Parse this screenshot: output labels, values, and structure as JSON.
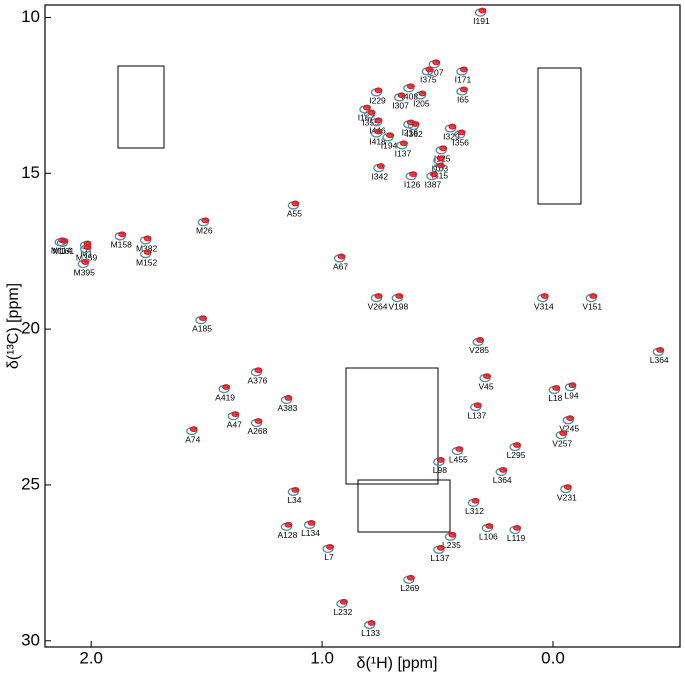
{
  "chart_data": {
    "type": "scatter",
    "x_label": "δ(¹H) [ppm]",
    "y_label": "δ(¹³C) [ppm]",
    "xlim": [
      2.2,
      -0.55
    ],
    "ylim": [
      30.2,
      9.6
    ],
    "xticks": [
      {
        "value": 2.0,
        "label": "2.0"
      },
      {
        "value": 1.0,
        "label": "1.0"
      },
      {
        "value": 0.0,
        "label": "0.0"
      }
    ],
    "yticks": [
      10,
      15,
      20,
      25,
      30
    ],
    "colors": [
      "#d7191c",
      "#4f8fa8"
    ],
    "points": {
      "labels": [
        "I191",
        "M26",
        "M114",
        "M1",
        "M161",
        "M359",
        "M395",
        "M158",
        "M382",
        "M152",
        "A55",
        "A67",
        "L364",
        "V151",
        "V314",
        "L18",
        "L94",
        "V245",
        "V257",
        "L295",
        "L364",
        "V231",
        "L119",
        "L106",
        "A74",
        "A47",
        "A419",
        "A376",
        "A268",
        "A383",
        "A128",
        "A185",
        "L232",
        "L133",
        "L269",
        "I229",
        "I207",
        "I171",
        "I375",
        "I65",
        "I408",
        "I205",
        "I307",
        "I167",
        "I355",
        "I446",
        "I418",
        "I194",
        "I216",
        "I362",
        "I329",
        "I356",
        "I125",
        "I103",
        "I415",
        "I137",
        "I342",
        "I126",
        "I387",
        "V264",
        "V198",
        "V285",
        "V45",
        "L137",
        "L455",
        "L98",
        "L312",
        "L235",
        "L137",
        "L7",
        "L134",
        "L34"
      ],
      "x": [
        0.31,
        1.51,
        2.13,
        2.02,
        2.12,
        2.02,
        2.03,
        1.87,
        1.76,
        1.76,
        1.12,
        0.92,
        -0.46,
        -0.17,
        0.04,
        -0.01,
        -0.08,
        -0.07,
        -0.04,
        0.16,
        0.22,
        -0.06,
        0.16,
        0.28,
        1.56,
        1.38,
        1.42,
        1.28,
        1.28,
        1.15,
        1.15,
        1.52,
        0.91,
        0.79,
        0.62,
        0.76,
        0.51,
        0.39,
        0.54,
        0.39,
        0.62,
        0.57,
        0.66,
        0.81,
        0.79,
        0.76,
        0.76,
        0.71,
        0.62,
        0.6,
        0.44,
        0.4,
        0.48,
        0.49,
        0.49,
        0.65,
        0.75,
        0.61,
        0.52,
        0.76,
        0.67,
        0.32,
        0.29,
        0.33,
        0.41,
        0.49,
        0.34,
        0.44,
        0.49,
        0.97,
        1.05,
        1.12
      ],
      "y": [
        9.81,
        16.54,
        17.18,
        17.28,
        17.2,
        17.4,
        17.88,
        16.99,
        17.12,
        17.56,
        16.0,
        17.7,
        20.7,
        18.97,
        18.97,
        21.92,
        21.83,
        22.89,
        23.37,
        23.75,
        24.55,
        25.1,
        26.41,
        26.35,
        23.24,
        22.76,
        21.89,
        21.35,
        22.98,
        22.24,
        26.31,
        19.68,
        28.78,
        29.46,
        28.01,
        12.37,
        11.47,
        11.7,
        11.7,
        12.34,
        12.24,
        12.47,
        12.53,
        12.92,
        13.08,
        13.33,
        13.69,
        13.81,
        13.4,
        13.45,
        13.53,
        13.72,
        14.23,
        14.55,
        14.78,
        14.07,
        14.8,
        15.06,
        15.06,
        18.97,
        18.97,
        20.38,
        21.54,
        22.47,
        23.88,
        24.23,
        25.54,
        26.63,
        27.05,
        27.02,
        26.25,
        25.19
      ]
    }
  }
}
